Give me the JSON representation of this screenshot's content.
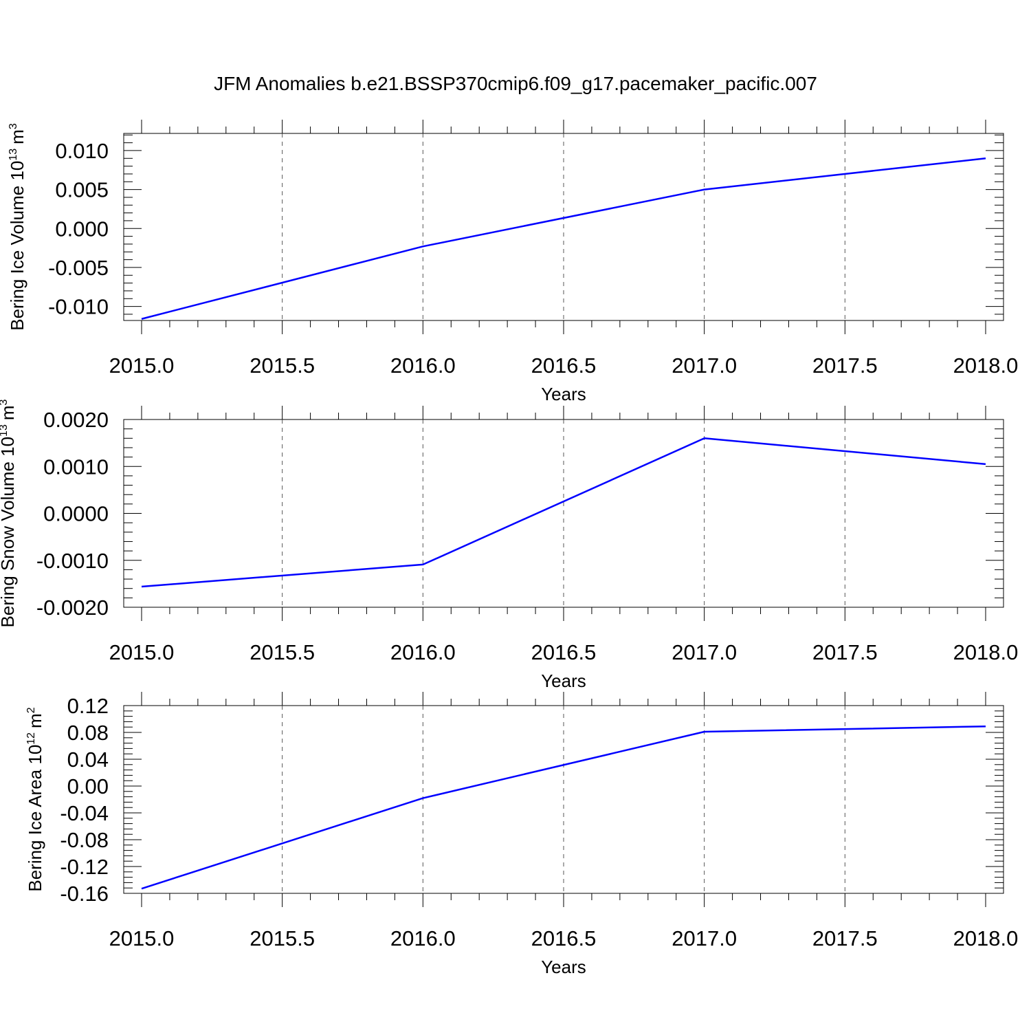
{
  "title": "JFM Anomalies b.e21.BSSP370cmip6.f09_g17.pacemaker_pacific.007",
  "colors": {
    "line": "#0000ff",
    "axis": "#000000",
    "grid": "#555555",
    "background": "#ffffff"
  },
  "chart_data": [
    {
      "type": "line",
      "ylabel": "Bering Ice Volume 10",
      "ylabel_exp": "13",
      "ylabel_unit": "m",
      "ylabel_unit_exp": "3",
      "xlabel": "Years",
      "xlim": [
        2015.0,
        2018.0
      ],
      "ylim": [
        -0.0118,
        0.0122
      ],
      "x_ticks": [
        2015.0,
        2015.5,
        2016.0,
        2016.5,
        2017.0,
        2017.5,
        2018.0
      ],
      "x_tick_labels": [
        "2015.0",
        "2015.5",
        "2016.0",
        "2016.5",
        "2017.0",
        "2017.5",
        "2018.0"
      ],
      "y_ticks": [
        0.01,
        0.005,
        0.0,
        -0.005,
        -0.01
      ],
      "y_tick_labels": [
        "0.010",
        "0.005",
        "0.000",
        "-0.005",
        "-0.010"
      ],
      "y_minor_step": 0.001,
      "grid": "x-dashed",
      "series": [
        {
          "x": [
            2015,
            2016,
            2017,
            2018
          ],
          "y": [
            -0.0116,
            -0.0023,
            0.005,
            0.009
          ]
        }
      ]
    },
    {
      "type": "line",
      "ylabel": "Bering Snow Volume 10",
      "ylabel_exp": "13",
      "ylabel_unit": "m",
      "ylabel_unit_exp": "3",
      "xlabel": "Years",
      "xlim": [
        2015.0,
        2018.0
      ],
      "ylim": [
        -0.002,
        0.002
      ],
      "x_ticks": [
        2015.0,
        2015.5,
        2016.0,
        2016.5,
        2017.0,
        2017.5,
        2018.0
      ],
      "x_tick_labels": [
        "2015.0",
        "2015.5",
        "2016.0",
        "2016.5",
        "2017.0",
        "2017.5",
        "2018.0"
      ],
      "y_ticks": [
        0.002,
        0.001,
        0.0,
        -0.001,
        -0.002
      ],
      "y_tick_labels": [
        "0.0020",
        "0.0010",
        "0.0000",
        "-0.0010",
        "-0.0020"
      ],
      "y_minor_step": 0.0002,
      "grid": "x-dashed",
      "series": [
        {
          "x": [
            2015,
            2016,
            2017,
            2018
          ],
          "y": [
            -0.00156,
            -0.00109,
            0.0016,
            0.00105
          ]
        }
      ]
    },
    {
      "type": "line",
      "ylabel": "Bering Ice Area 10",
      "ylabel_exp": "12",
      "ylabel_unit": "m",
      "ylabel_unit_exp": "2",
      "xlabel": "Years",
      "xlim": [
        2015.0,
        2018.0
      ],
      "ylim": [
        -0.16,
        0.12
      ],
      "x_ticks": [
        2015.0,
        2015.5,
        2016.0,
        2016.5,
        2017.0,
        2017.5,
        2018.0
      ],
      "x_tick_labels": [
        "2015.0",
        "2015.5",
        "2016.0",
        "2016.5",
        "2017.0",
        "2017.5",
        "2018.0"
      ],
      "y_ticks": [
        0.12,
        0.08,
        0.04,
        0.0,
        -0.04,
        -0.08,
        -0.12,
        -0.16
      ],
      "y_tick_labels": [
        "0.12",
        "0.08",
        "0.04",
        "0.00",
        "-0.04",
        "-0.08",
        "-0.12",
        "-0.16"
      ],
      "y_minor_step": 0.008,
      "grid": "x-dashed",
      "series": [
        {
          "x": [
            2015,
            2016,
            2017,
            2018
          ],
          "y": [
            -0.153,
            -0.018,
            0.081,
            0.089
          ]
        }
      ]
    }
  ]
}
